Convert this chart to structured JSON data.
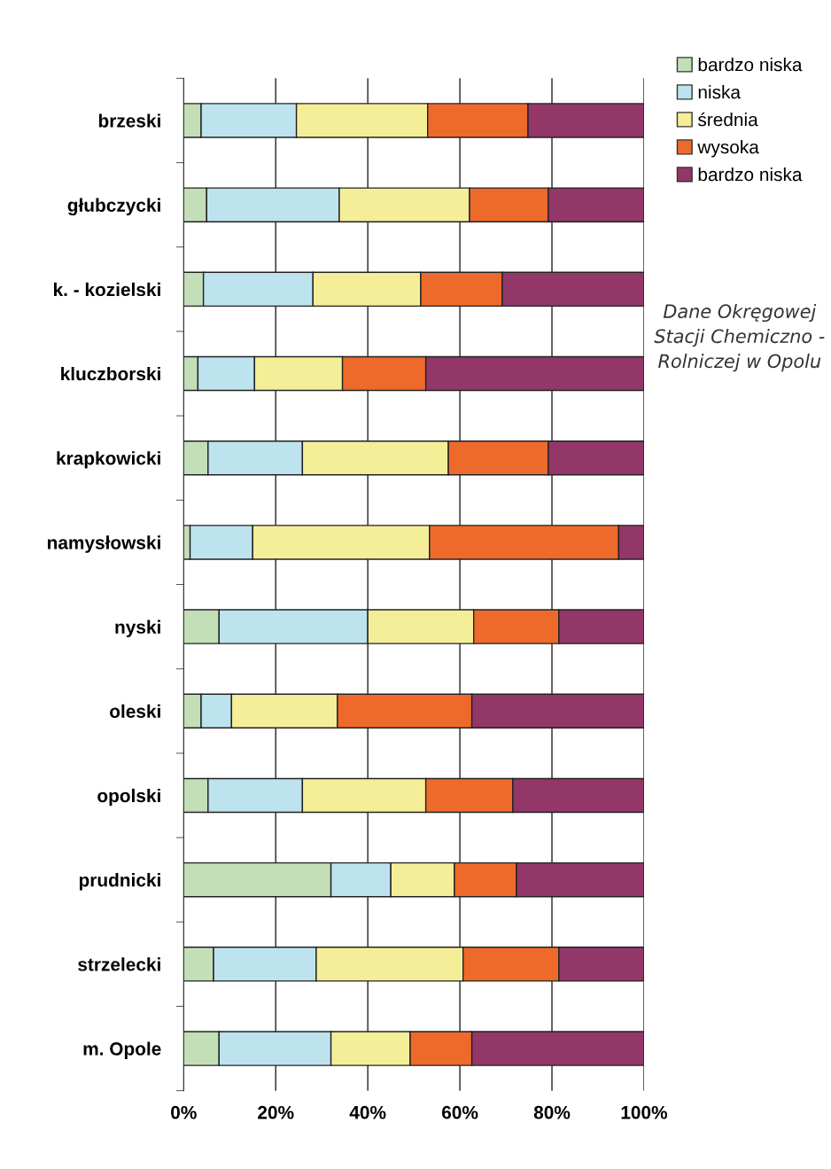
{
  "chart_data": {
    "type": "bar",
    "orientation": "horizontal",
    "stacked": true,
    "categories": [
      "brzeski",
      "głubczycki",
      "k. - kozielski",
      "kluczborski",
      "krapkowicki",
      "namysłowski",
      "nyski",
      "oleski",
      "opolski",
      "prudnicki",
      "strzelecki",
      "m. Opole"
    ],
    "series": [
      {
        "name": "bardzo niska",
        "color": "#c3dfb8",
        "values": [
          3.8,
          5.0,
          4.3,
          3.1,
          5.3,
          1.4,
          7.7,
          3.8,
          5.3,
          32.0,
          6.5,
          7.7
        ]
      },
      {
        "name": "niska",
        "color": "#bde3ee",
        "values": [
          20.7,
          28.8,
          23.8,
          12.3,
          20.5,
          13.6,
          32.3,
          6.6,
          20.5,
          13.0,
          22.3,
          24.3
        ]
      },
      {
        "name": "średnia",
        "color": "#f5ee98",
        "values": [
          28.5,
          28.3,
          23.4,
          19.1,
          31.7,
          38.4,
          23.0,
          23.0,
          26.8,
          13.8,
          31.9,
          17.2
        ]
      },
      {
        "name": "wysoka",
        "color": "#ee6a2b",
        "values": [
          21.8,
          17.1,
          17.7,
          18.1,
          21.7,
          41.1,
          18.5,
          29.2,
          18.9,
          13.5,
          20.8,
          13.4
        ]
      },
      {
        "name": "bardzo niska",
        "color": "#933769",
        "values": [
          25.2,
          20.8,
          30.8,
          47.4,
          20.8,
          5.5,
          18.5,
          37.4,
          28.5,
          27.7,
          18.5,
          37.4
        ]
      }
    ],
    "xlim": [
      0,
      100
    ],
    "xticks": [
      {
        "value": 0,
        "label": "0%"
      },
      {
        "value": 20,
        "label": "20%"
      },
      {
        "value": 40,
        "label": "40%"
      },
      {
        "value": 60,
        "label": "60%"
      },
      {
        "value": 80,
        "label": "80%"
      },
      {
        "value": 100,
        "label": "100%"
      }
    ],
    "grid": "x",
    "legend": "top right",
    "annotations": [
      "Dane Okręgowej Stacji Chemiczno - Rolniczej w Opolu"
    ]
  }
}
